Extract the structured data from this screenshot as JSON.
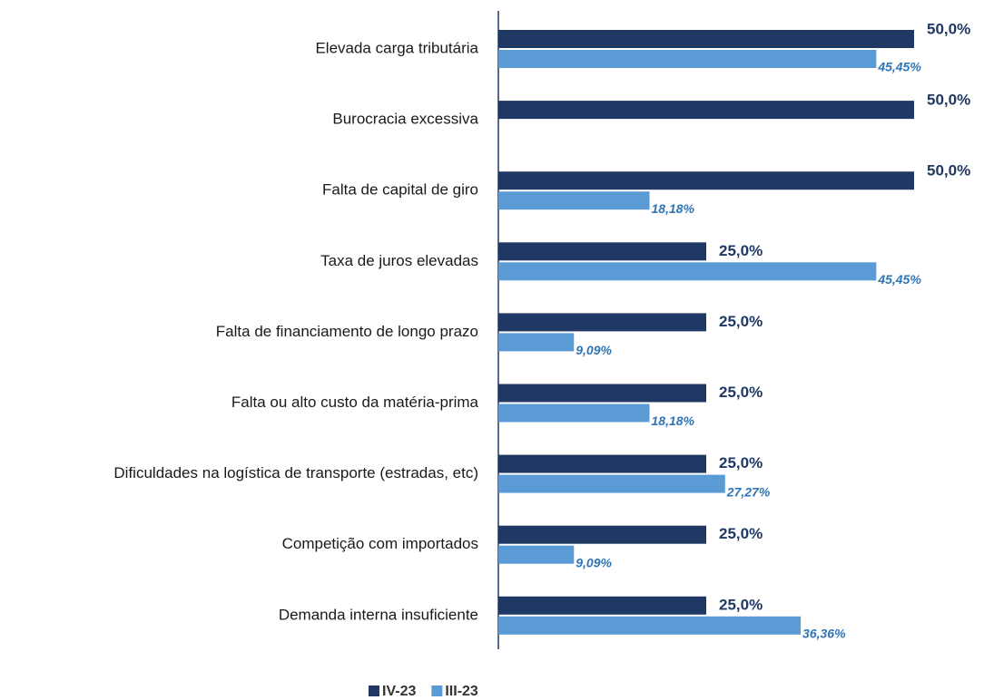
{
  "chart_data": {
    "type": "bar",
    "orientation": "horizontal",
    "categories": [
      "Elevada carga tributária",
      "Burocracia excessiva",
      "Falta de capital de giro",
      "Taxa de juros elevadas",
      "Falta de financiamento de longo prazo",
      "Falta ou alto custo da matéria-prima",
      "Dificuldades na logística de transporte (estradas, etc)",
      "Competição com importados",
      "Demanda interna insuficiente"
    ],
    "series": [
      {
        "name": "IV-23",
        "color": "#203864",
        "values": [
          50,
          50,
          50,
          25,
          25,
          25,
          25,
          25,
          25
        ],
        "value_labels": [
          "50,0%",
          "50,0%",
          "50,0%",
          "25,0%",
          "25,0%",
          "25,0%",
          "25,0%",
          "25,0%",
          "25,0%"
        ],
        "label_color": "#203864"
      },
      {
        "name": "III-23",
        "color": "#5b9bd5",
        "values": [
          45.45,
          null,
          18.18,
          45.45,
          9.09,
          18.18,
          27.27,
          9.09,
          36.36
        ],
        "value_labels": [
          "45,45%",
          null,
          "18,18%",
          "45,45%",
          "9,09%",
          "18,18%",
          "27,27%",
          "9,09%",
          "36,36%"
        ],
        "label_color": "#2e75b6"
      }
    ],
    "legend": "bottom"
  }
}
